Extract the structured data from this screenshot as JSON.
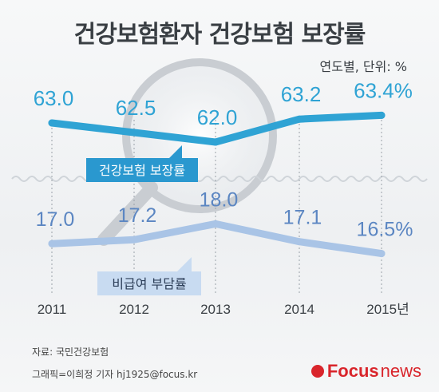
{
  "title": "건강보험환자 건강보험 보장률",
  "subtitle": "연도별, 단위: %",
  "source": "자료: 국민건강보험",
  "credit": "그래픽=이희정 기자 hj1925@focus.kr",
  "logo": {
    "brand": "Focus",
    "suffix": "news"
  },
  "colors": {
    "coverage": "#2fa3d4",
    "copay": "#a9c4e6",
    "coverage_label_bg": "#2a98cf",
    "copay_label_bg": "#c8dbf1"
  },
  "chart_data": {
    "type": "line",
    "categories": [
      "2011",
      "2012",
      "2013",
      "2014",
      "2015년"
    ],
    "series": [
      {
        "name": "건강보험 보장률",
        "values": [
          63.0,
          62.5,
          62.0,
          63.2,
          63.4
        ],
        "labels": [
          "63.0",
          "62.5",
          "62.0",
          "63.2",
          "63.4%"
        ]
      },
      {
        "name": "비급여 부담률",
        "values": [
          17.0,
          17.2,
          18.0,
          17.1,
          16.5
        ],
        "labels": [
          "17.0",
          "17.2",
          "18.0",
          "17.1",
          "16.5%"
        ]
      }
    ],
    "axis_break": true,
    "grid": "vertical-dotted",
    "xlabel": "",
    "ylabel": ""
  }
}
